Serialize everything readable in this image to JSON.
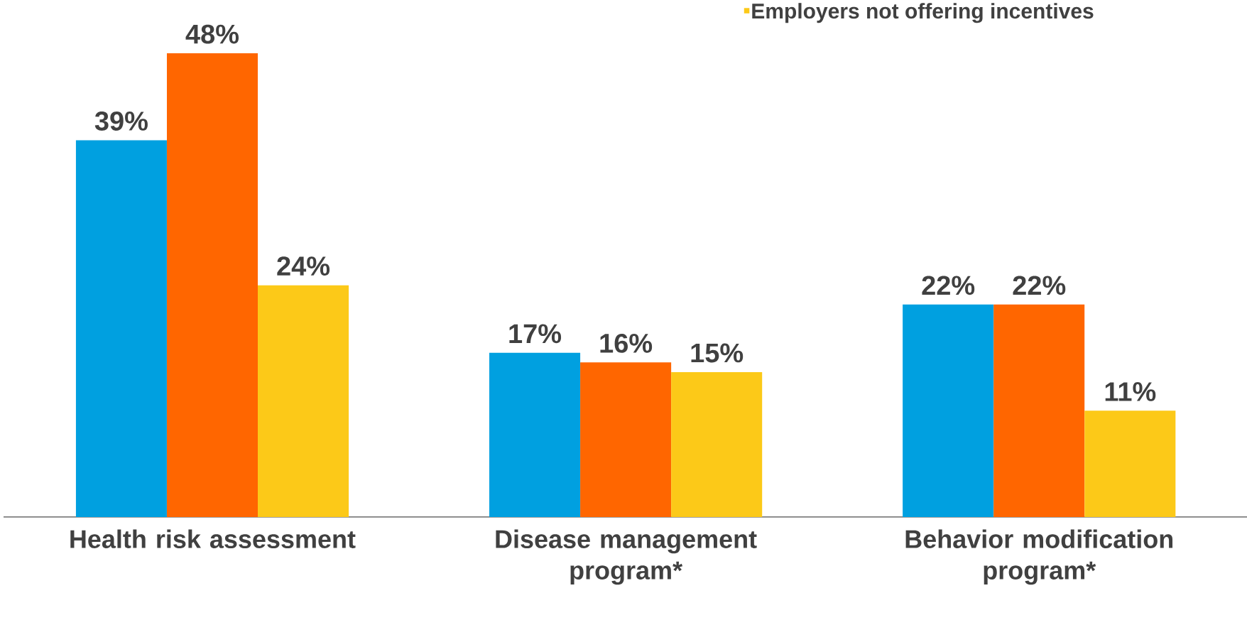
{
  "chart_data": {
    "type": "bar",
    "categories": [
      "Health risk assessment",
      "Disease management program*",
      "Behavior modification program*"
    ],
    "series": [
      {
        "color": "#00a0e0",
        "values": [
          39,
          17,
          22
        ],
        "value_labels": [
          "39%",
          "17%",
          "22%"
        ]
      },
      {
        "color": "#ff6600",
        "values": [
          48,
          16,
          22
        ],
        "value_labels": [
          "48%",
          "16%",
          "22%"
        ]
      },
      {
        "name": "Employers not offering incentives",
        "color": "#fcc918",
        "values": [
          24,
          15,
          11
        ],
        "value_labels": [
          "24%",
          "15%",
          "11%"
        ]
      }
    ],
    "legend": "top right"
  }
}
